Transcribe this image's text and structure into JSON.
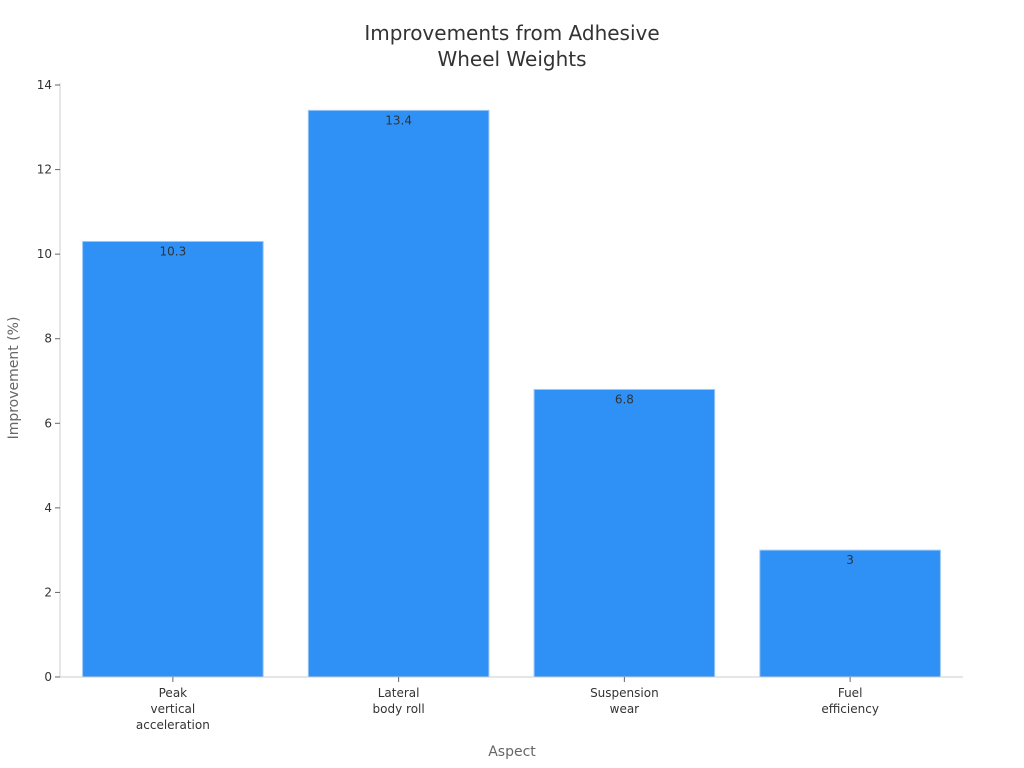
{
  "chart_data": {
    "type": "bar",
    "title": "Improvements from Adhesive Wheel Weights",
    "title_lines": [
      "Improvements from Adhesive",
      "Wheel Weights"
    ],
    "xlabel": "Aspect",
    "ylabel": "Improvement (%)",
    "categories": [
      "Peak vertical acceleration",
      "Lateral body roll",
      "Suspension wear",
      "Fuel efficiency"
    ],
    "category_lines": [
      [
        "Peak",
        "vertical",
        "acceleration"
      ],
      [
        "Lateral",
        "body roll"
      ],
      [
        "Suspension",
        "wear"
      ],
      [
        "Fuel",
        "efficiency"
      ]
    ],
    "values": [
      10.3,
      13.4,
      6.8,
      3
    ],
    "value_labels": [
      "10.3",
      "13.4",
      "6.8",
      "3"
    ],
    "ylim": [
      0,
      14
    ],
    "yticks": [
      0,
      2,
      4,
      6,
      8,
      10,
      12,
      14
    ],
    "grid": false,
    "legend": null,
    "bar_color": "#2f91f6"
  }
}
